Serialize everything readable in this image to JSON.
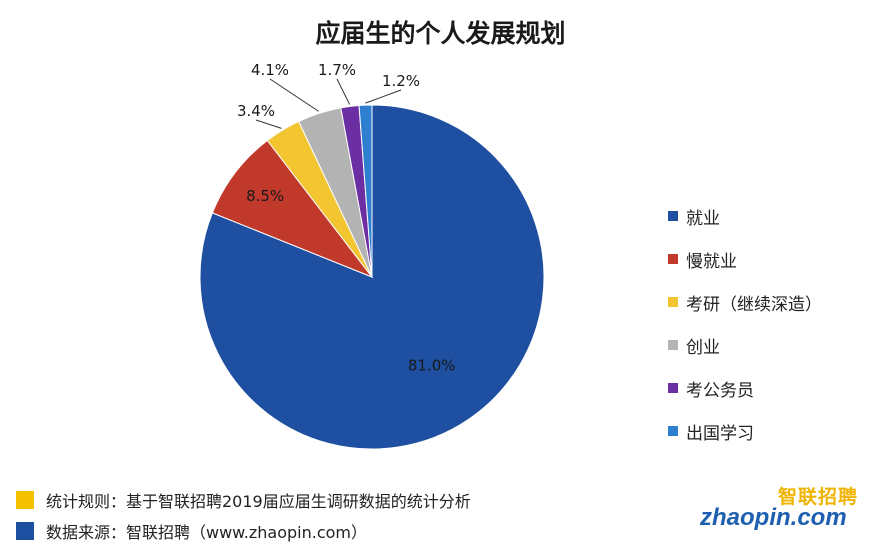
{
  "chart_data": {
    "type": "pie",
    "title": "应届生的个人发展规划",
    "categories": [
      "就业",
      "慢就业",
      "考研（继续深造）",
      "创业",
      "考公务员",
      "出国学习"
    ],
    "values": [
      81.0,
      8.5,
      3.4,
      4.1,
      1.7,
      1.2
    ],
    "value_labels": [
      "81.0%",
      "8.5%",
      "3.4%",
      "4.1%",
      "1.7%",
      "1.2%"
    ],
    "colors": [
      "#1e4fa0",
      "#c0392b",
      "#f2c531",
      "#b3b3b3",
      "#6b2fa3",
      "#2f7fd0"
    ],
    "legend_position": "right"
  },
  "footnotes": [
    {
      "text": "统计规则：基于智联招聘2019届应届生调研数据的统计分析",
      "color": "#f5c200"
    },
    {
      "text": "数据来源：智联招聘（www.zhaopin.com）",
      "color": "#1e4fa0"
    }
  ],
  "logo": {
    "top": "智联招聘",
    "bottom": "zhaopin.com"
  }
}
